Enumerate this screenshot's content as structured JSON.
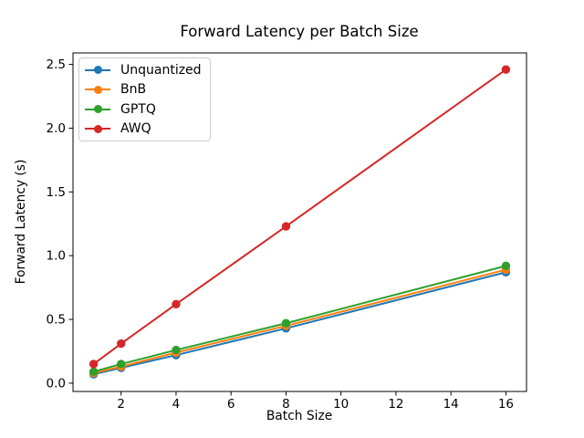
{
  "chart_data": {
    "type": "line",
    "title": "Forward Latency per Batch Size",
    "xlabel": "Batch Size",
    "ylabel": "Forward Latency (s)",
    "x": [
      1,
      2,
      4,
      8,
      16
    ],
    "series": [
      {
        "name": "Unquantized",
        "color": "#1f77b4",
        "values": [
          0.07,
          0.12,
          0.22,
          0.43,
          0.87
        ]
      },
      {
        "name": "BnB",
        "color": "#ff7f0e",
        "values": [
          0.08,
          0.13,
          0.24,
          0.45,
          0.89
        ]
      },
      {
        "name": "GPTQ",
        "color": "#2ca02c",
        "values": [
          0.09,
          0.15,
          0.26,
          0.47,
          0.92
        ]
      },
      {
        "name": "AWQ",
        "color": "#d62728",
        "values": [
          0.15,
          0.31,
          0.62,
          1.23,
          2.46
        ]
      }
    ],
    "xticks": [
      2,
      4,
      6,
      8,
      10,
      12,
      14,
      16
    ],
    "yticks": [
      0.0,
      0.5,
      1.0,
      1.5,
      2.0,
      2.5
    ],
    "xlim": [
      0.25,
      16.75
    ],
    "ylim": [
      -0.065,
      2.59
    ],
    "grid": false,
    "legend_position": "upper-left",
    "marker": "circle"
  }
}
